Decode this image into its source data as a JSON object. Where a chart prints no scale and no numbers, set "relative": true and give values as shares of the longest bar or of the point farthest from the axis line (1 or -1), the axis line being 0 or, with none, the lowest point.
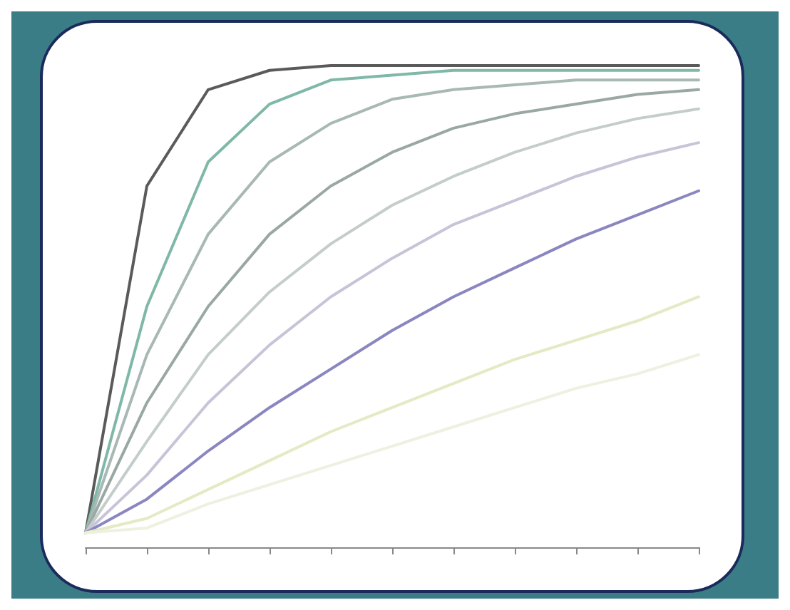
{
  "chart_data": {
    "type": "line",
    "relative": true,
    "grid": false,
    "marker": "none",
    "line_style": "solid",
    "categories": [
      null,
      null,
      null,
      null,
      null,
      null,
      null,
      null,
      null,
      null,
      null
    ],
    "series": [
      {
        "color": "#5a5a5a",
        "values": [
          0.03,
          0.75,
          0.95,
          0.99,
          1,
          1,
          1,
          1,
          1,
          1,
          1
        ]
      },
      {
        "color": "#7fb8a8",
        "values": [
          0.03,
          0.5,
          0.8,
          0.92,
          0.97,
          0.98,
          0.99,
          0.99,
          0.99,
          0.99,
          0.99
        ]
      },
      {
        "color": "#a8b8b4",
        "values": [
          0.03,
          0.4,
          0.65,
          0.8,
          0.88,
          0.93,
          0.95,
          0.96,
          0.97,
          0.97,
          0.97
        ]
      },
      {
        "color": "#9aa8a4",
        "values": [
          0.03,
          0.3,
          0.5,
          0.65,
          0.75,
          0.82,
          0.87,
          0.9,
          0.92,
          0.94,
          0.95
        ]
      },
      {
        "color": "#c4cccc",
        "values": [
          0.03,
          0.22,
          0.4,
          0.53,
          0.63,
          0.71,
          0.77,
          0.82,
          0.86,
          0.89,
          0.91
        ]
      },
      {
        "color": "#c8c4d8",
        "values": [
          0.03,
          0.15,
          0.3,
          0.42,
          0.52,
          0.6,
          0.67,
          0.72,
          0.77,
          0.81,
          0.84
        ]
      },
      {
        "color": "#8a86c0",
        "values": [
          0.03,
          0.1,
          0.2,
          0.29,
          0.37,
          0.45,
          0.52,
          0.58,
          0.64,
          0.69,
          0.74
        ]
      },
      {
        "color": "#e4eac4",
        "values": [
          0.03,
          0.06,
          0.12,
          0.18,
          0.24,
          0.29,
          0.34,
          0.39,
          0.43,
          0.47,
          0.52
        ]
      },
      {
        "color": "#eef0e0",
        "values": [
          0.03,
          0.04,
          0.09,
          0.13,
          0.17,
          0.21,
          0.25,
          0.29,
          0.33,
          0.36,
          0.4
        ]
      }
    ]
  }
}
